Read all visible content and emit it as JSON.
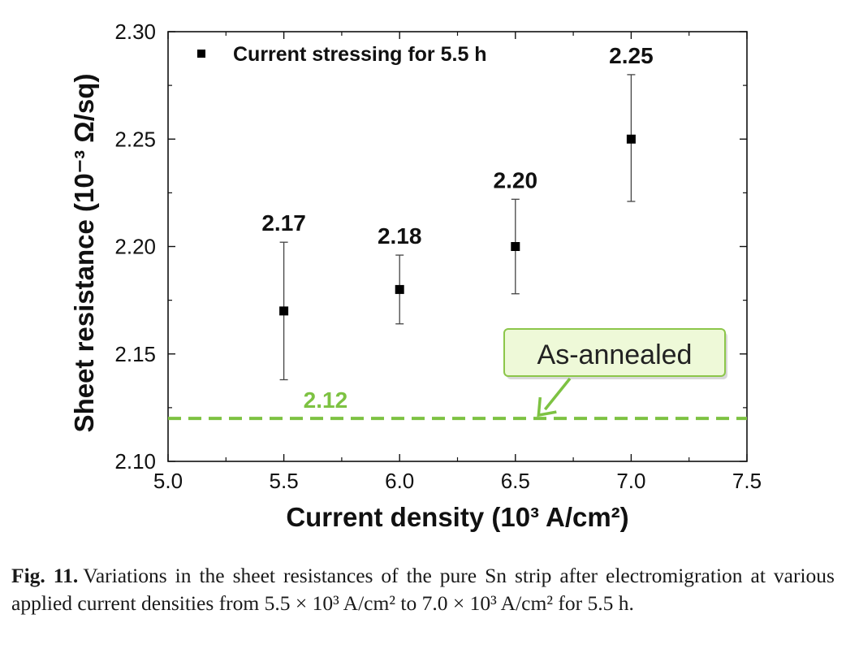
{
  "chart_data": {
    "type": "scatter",
    "xlabel": "Current density (10³ A/cm²)",
    "ylabel": "Sheet resistance (10⁻³ Ω/sq)",
    "xlim": [
      5.0,
      7.5
    ],
    "ylim": [
      2.1,
      2.3
    ],
    "x_ticks": [
      "5.0",
      "5.5",
      "6.0",
      "6.5",
      "7.0",
      "7.5"
    ],
    "y_ticks": [
      "2.10",
      "2.15",
      "2.20",
      "2.25",
      "2.30"
    ],
    "grid": false,
    "legend": {
      "placement": "top-left",
      "entries": [
        "Current stressing for 5.5 h"
      ]
    },
    "series": [
      {
        "name": "Current stressing for 5.5 h",
        "color": "#000000",
        "marker": "square",
        "x": [
          5.5,
          6.0,
          6.5,
          7.0
        ],
        "y": [
          2.17,
          2.18,
          2.2,
          2.25
        ],
        "err_low": [
          2.138,
          2.164,
          2.178,
          2.221
        ],
        "err_high": [
          2.202,
          2.196,
          2.222,
          2.28
        ],
        "labels": [
          "2.17",
          "2.18",
          "2.20",
          "2.25"
        ]
      }
    ],
    "reference_line": {
      "value": 2.12,
      "label": "2.12",
      "style": "dashed",
      "color": "#7dc242"
    },
    "annotation": {
      "text": "As-annealed",
      "points_to_x": 6.6,
      "box_fill": "#eef9d8",
      "box_stroke": "#8cc64a"
    }
  },
  "caption": {
    "label": "Fig. 11.",
    "text": "Variations in the sheet resistances of the pure Sn strip after electromigration at various applied current densities from 5.5 × 10³ A/cm² to 7.0 × 10³ A/cm² for 5.5 h."
  }
}
